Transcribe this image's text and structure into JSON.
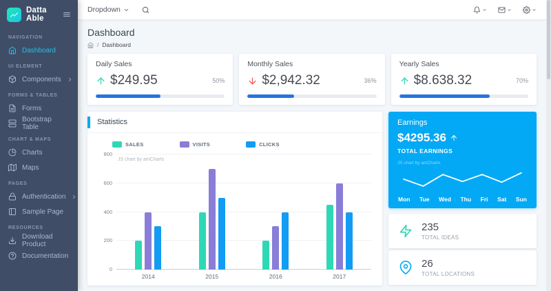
{
  "sidebar": {
    "brand": "Datta Able",
    "sections": [
      {
        "label": "NAVIGATION",
        "items": [
          {
            "label": "Dashboard"
          }
        ]
      },
      {
        "label": "UI ELEMENT",
        "items": [
          {
            "label": "Components"
          }
        ]
      },
      {
        "label": "FORMS & TABLES",
        "items": [
          {
            "label": "Forms"
          },
          {
            "label": "Bootstrap Table"
          }
        ]
      },
      {
        "label": "CHART & MAPS",
        "items": [
          {
            "label": "Charts"
          },
          {
            "label": "Maps"
          }
        ]
      },
      {
        "label": "PAGES",
        "items": [
          {
            "label": "Authentication"
          },
          {
            "label": "Sample Page"
          }
        ]
      },
      {
        "label": "RESOURCES",
        "items": [
          {
            "label": "Download Product"
          },
          {
            "label": "Documentation"
          }
        ]
      }
    ]
  },
  "header": {
    "dropdown_label": "Dropdown",
    "icons": [
      "bell",
      "mail",
      "settings"
    ]
  },
  "page": {
    "title": "Dashboard",
    "breadcrumb_current": "Dashboard"
  },
  "stats_cards": [
    {
      "title": "Daily Sales",
      "value": "$249.95",
      "trend": "up",
      "percent": "50%",
      "progress": 50
    },
    {
      "title": "Monthly Sales",
      "value": "$2,942.32",
      "trend": "down",
      "percent": "36%",
      "progress": 36
    },
    {
      "title": "Yearly Sales",
      "value": "$8.638.32",
      "trend": "up",
      "percent": "70%",
      "progress": 70
    }
  ],
  "statistics": {
    "title": "Statistics",
    "watermark": "JS chart by amCharts"
  },
  "earnings": {
    "title": "Earnings",
    "value": "$4295.36",
    "subtitle": "TOTAL EARNINGS",
    "watermark": "JS chart by amCharts"
  },
  "info_cards": [
    {
      "value": "235",
      "label": "TOTAL IDEAS",
      "icon": "zap-icon"
    },
    {
      "value": "26",
      "label": "TOTAL LOCATIONS",
      "icon": "map-pin-icon"
    }
  ],
  "colors": {
    "sidebar_bg": "#3f4d67",
    "active_item": "#1dc4e9",
    "primary_blue": "#04a9f5",
    "progress_blue": "#2673e0",
    "success_green": "#2ed8b6",
    "danger_red": "#ff5252",
    "sales_teal": "#2ed8b6",
    "visits_purple": "#8a7dd8",
    "clicks_blue": "#129cf3"
  },
  "chart_data": [
    {
      "type": "bar",
      "title": "Statistics",
      "categories": [
        "2014",
        "2015",
        "2016",
        "2017"
      ],
      "series": [
        {
          "name": "SALES",
          "color": "#2ed8b6",
          "values": [
            200,
            400,
            200,
            450
          ]
        },
        {
          "name": "VISITS",
          "color": "#8a7dd8",
          "values": [
            400,
            700,
            300,
            600
          ]
        },
        {
          "name": "CLICKS",
          "color": "#129cf3",
          "values": [
            300,
            500,
            400,
            400
          ]
        }
      ],
      "xlabel": "",
      "ylabel": "",
      "ylim": [
        0,
        800
      ],
      "yticks": [
        0,
        200,
        400,
        600,
        800
      ],
      "grid": true,
      "legend_position": "top"
    },
    {
      "type": "line",
      "title": "Earnings (weekly)",
      "x": [
        "Mon",
        "Tue",
        "Wed",
        "Thu",
        "Fri",
        "Sat",
        "Sun"
      ],
      "values": [
        55,
        25,
        75,
        45,
        75,
        42,
        82
      ],
      "ylim": [
        0,
        100
      ],
      "line_color": "#ffffff",
      "grid": false
    }
  ]
}
